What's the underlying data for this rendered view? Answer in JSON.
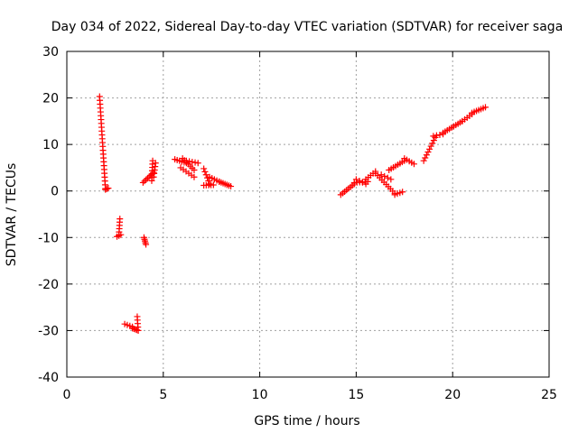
{
  "chart_data": {
    "type": "scatter",
    "title": "Day 034 of 2022, Sidereal Day-to-day VTEC variation (SDTVAR) for receiver saga",
    "xlabel": "GPS time / hours",
    "ylabel": "SDTVAR / TECUs",
    "xlim": [
      0,
      25
    ],
    "ylim": [
      -40,
      30
    ],
    "xticks": [
      0,
      5,
      10,
      15,
      20,
      25
    ],
    "yticks": [
      -40,
      -30,
      -20,
      -10,
      0,
      10,
      20,
      30
    ],
    "grid": true,
    "marker": "+",
    "color": "#ff0000",
    "segments": [
      {
        "start": [
          1.7,
          20.3
        ],
        "end": [
          2.0,
          0.5
        ],
        "ticks": 25
      },
      {
        "start": [
          2.0,
          0.3
        ],
        "end": [
          2.15,
          0.6
        ],
        "ticks": 3
      },
      {
        "start": [
          2.75,
          -6.0
        ],
        "end": [
          2.7,
          -9.5
        ],
        "ticks": 6
      },
      {
        "start": [
          2.6,
          -9.8
        ],
        "end": [
          2.8,
          -9.4
        ],
        "ticks": 3
      },
      {
        "start": [
          3.0,
          -28.6
        ],
        "end": [
          3.4,
          -29.2
        ],
        "ticks": 4
      },
      {
        "start": [
          3.4,
          -29.5
        ],
        "end": [
          3.7,
          -30.0
        ],
        "ticks": 5
      },
      {
        "start": [
          3.65,
          -27.0
        ],
        "end": [
          3.7,
          -30.0
        ],
        "ticks": 5
      },
      {
        "start": [
          4.0,
          -10.0
        ],
        "end": [
          4.1,
          -11.5
        ],
        "ticks": 5
      },
      {
        "start": [
          3.95,
          1.8
        ],
        "end": [
          4.5,
          4.0
        ],
        "ticks": 8
      },
      {
        "start": [
          4.4,
          2.2
        ],
        "end": [
          4.45,
          6.5
        ],
        "ticks": 7
      },
      {
        "start": [
          4.5,
          3.0
        ],
        "end": [
          4.6,
          6.0
        ],
        "ticks": 5
      },
      {
        "start": [
          5.6,
          6.8
        ],
        "end": [
          6.2,
          6.0
        ],
        "ticks": 6
      },
      {
        "start": [
          6.0,
          7.0
        ],
        "end": [
          6.6,
          4.5
        ],
        "ticks": 7
      },
      {
        "start": [
          5.9,
          5.0
        ],
        "end": [
          6.6,
          3.0
        ],
        "ticks": 6
      },
      {
        "start": [
          6.2,
          6.5
        ],
        "end": [
          6.8,
          6.0
        ],
        "ticks": 5
      },
      {
        "start": [
          7.1,
          4.8
        ],
        "end": [
          7.4,
          1.5
        ],
        "ticks": 6
      },
      {
        "start": [
          7.1,
          1.2
        ],
        "end": [
          7.6,
          1.3
        ],
        "ticks": 5
      },
      {
        "start": [
          7.4,
          3.0
        ],
        "end": [
          7.9,
          2.0
        ],
        "ticks": 5
      },
      {
        "start": [
          7.9,
          2.0
        ],
        "end": [
          8.5,
          1.0
        ],
        "ticks": 7
      },
      {
        "start": [
          14.2,
          -0.8
        ],
        "end": [
          14.9,
          1.5
        ],
        "ticks": 8
      },
      {
        "start": [
          14.9,
          1.8
        ],
        "end": [
          15.6,
          2.0
        ],
        "ticks": 6
      },
      {
        "start": [
          15.0,
          2.5
        ],
        "end": [
          15.5,
          1.5
        ],
        "ticks": 4
      },
      {
        "start": [
          15.5,
          2.5
        ],
        "end": [
          16.0,
          4.2
        ],
        "ticks": 5
      },
      {
        "start": [
          16.0,
          3.8
        ],
        "end": [
          17.0,
          -0.5
        ],
        "ticks": 10
      },
      {
        "start": [
          17.0,
          -0.8
        ],
        "end": [
          17.4,
          -0.2
        ],
        "ticks": 4
      },
      {
        "start": [
          16.3,
          3.5
        ],
        "end": [
          16.8,
          2.5
        ],
        "ticks": 4
      },
      {
        "start": [
          16.7,
          4.5
        ],
        "end": [
          17.5,
          6.5
        ],
        "ticks": 8
      },
      {
        "start": [
          17.5,
          7.0
        ],
        "end": [
          18.0,
          5.8
        ],
        "ticks": 5
      },
      {
        "start": [
          18.5,
          6.5
        ],
        "end": [
          19.1,
          11.5
        ],
        "ticks": 9
      },
      {
        "start": [
          19.0,
          11.8
        ],
        "end": [
          19.5,
          12.2
        ],
        "ticks": 4
      },
      {
        "start": [
          19.5,
          12.5
        ],
        "end": [
          20.5,
          15.0
        ],
        "ticks": 10
      },
      {
        "start": [
          20.5,
          15.0
        ],
        "end": [
          21.0,
          16.5
        ],
        "ticks": 5
      },
      {
        "start": [
          21.0,
          16.8
        ],
        "end": [
          21.7,
          18.0
        ],
        "ticks": 7
      }
    ]
  }
}
